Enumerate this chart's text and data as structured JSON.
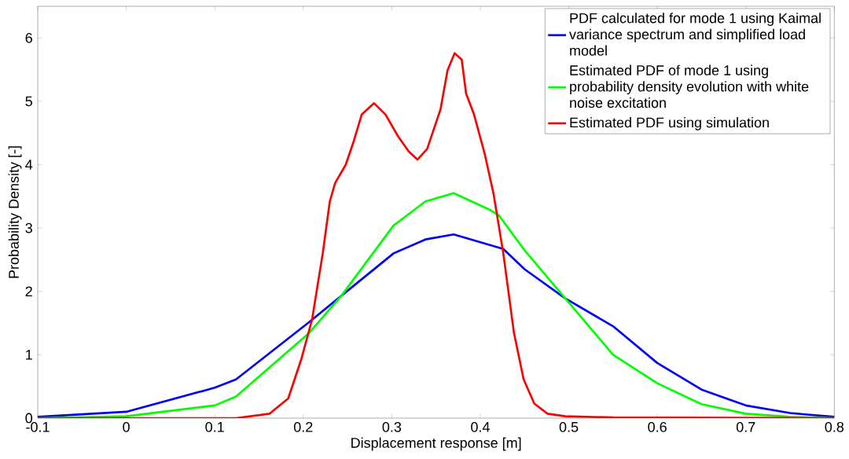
{
  "chart_data": {
    "type": "line",
    "xlabel": "Displacement response [m]",
    "ylabel": "Probability Density [-]",
    "xlim": [
      -0.1,
      0.8
    ],
    "ylim": [
      0,
      6.5
    ],
    "xticks": [
      -0.1,
      0,
      0.1,
      0.2,
      0.3,
      0.4,
      0.5,
      0.6,
      0.7,
      0.8
    ],
    "yticks": [
      0,
      1,
      2,
      3,
      4,
      5,
      6
    ],
    "grid": false,
    "legend": "top right",
    "marker": "none",
    "line_style": "solid",
    "series": [
      {
        "name": "PDF calculated for mode 1 using Kaimal variance spectrum and simplified load model",
        "color": "#0000ff",
        "x": [
          -0.1,
          0,
          0.1,
          0.124,
          0.207,
          0.243,
          0.302,
          0.338,
          0.37,
          0.426,
          0.45,
          0.496,
          0.55,
          0.6,
          0.65,
          0.7,
          0.75,
          0.8
        ],
        "values": [
          0.02,
          0.1,
          0.48,
          0.61,
          1.52,
          1.93,
          2.6,
          2.82,
          2.9,
          2.67,
          2.35,
          1.89,
          1.45,
          0.87,
          0.45,
          0.2,
          0.08,
          0.02
        ]
      },
      {
        "name": "Estimated PDF of mode 1 using probability density evolution with white noise excitation",
        "color": "#00ff00",
        "x": [
          -0.1,
          0,
          0.1,
          0.124,
          0.207,
          0.243,
          0.302,
          0.338,
          0.37,
          0.409,
          0.421,
          0.45,
          0.496,
          0.55,
          0.6,
          0.65,
          0.7,
          0.75,
          0.8
        ],
        "values": [
          0,
          0.03,
          0.2,
          0.34,
          1.35,
          1.93,
          3.04,
          3.42,
          3.55,
          3.3,
          3.2,
          2.65,
          1.89,
          1.0,
          0.55,
          0.22,
          0.07,
          0.02,
          0
        ]
      },
      {
        "name": "Estimated PDF using simulation",
        "color": "#ff0000",
        "x": [
          -0.1,
          0.124,
          0.162,
          0.183,
          0.198,
          0.21,
          0.222,
          0.23,
          0.236,
          0.248,
          0.257,
          0.266,
          0.28,
          0.293,
          0.307,
          0.319,
          0.329,
          0.34,
          0.355,
          0.363,
          0.371,
          0.379,
          0.384,
          0.393,
          0.405,
          0.415,
          0.426,
          0.438,
          0.449,
          0.461,
          0.476,
          0.496,
          0.55,
          0.8
        ],
        "values": [
          0,
          0,
          0.07,
          0.31,
          0.94,
          1.56,
          2.6,
          3.42,
          3.71,
          4.0,
          4.37,
          4.79,
          4.97,
          4.79,
          4.45,
          4.21,
          4.08,
          4.25,
          4.87,
          5.49,
          5.76,
          5.66,
          5.12,
          4.79,
          4.17,
          3.54,
          2.6,
          1.35,
          0.61,
          0.23,
          0.07,
          0.03,
          0.01,
          0
        ]
      }
    ]
  }
}
